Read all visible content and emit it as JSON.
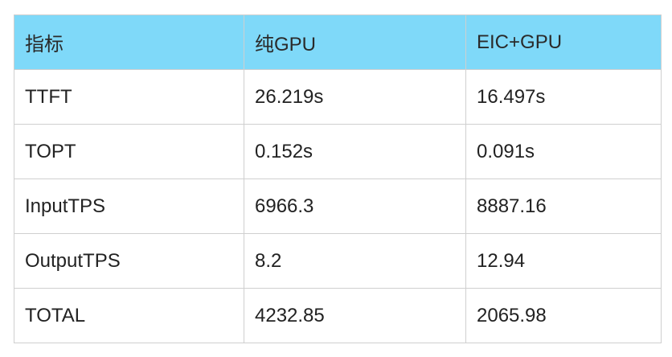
{
  "table": {
    "headers": [
      "指标",
      "纯GPU",
      "EIC+GPU"
    ],
    "rows": [
      [
        "TTFT",
        "26.219s",
        "16.497s"
      ],
      [
        "TOPT",
        "0.152s",
        "0.091s"
      ],
      [
        "InputTPS",
        "6966.3",
        "8887.16"
      ],
      [
        "OutputTPS",
        "8.2",
        "12.94"
      ],
      [
        "TOTAL",
        "4232.85",
        "2065.98"
      ]
    ]
  },
  "colors": {
    "header_background": "#7fd9f9",
    "border": "#cfcfcf",
    "text": "#222222"
  }
}
